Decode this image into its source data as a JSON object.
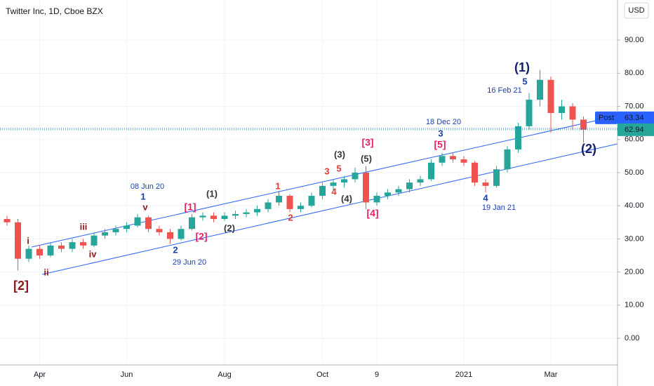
{
  "chart_data": {
    "type": "candlestick",
    "title": "Twitter Inc, 1D, Cboe BZX",
    "currency": "USD",
    "categories": [
      null,
      null,
      null,
      "Apr",
      null,
      null,
      null,
      null,
      null,
      null,
      null,
      "Jun",
      null,
      null,
      null,
      null,
      null,
      null,
      null,
      null,
      "Aug",
      null,
      null,
      null,
      null,
      null,
      null,
      null,
      null,
      "Oct",
      null,
      null,
      null,
      null,
      "9",
      null,
      null,
      null,
      null,
      null,
      null,
      null,
      "2021",
      null,
      null,
      null,
      null,
      null,
      null,
      null,
      "Mar",
      null,
      null,
      null
    ],
    "open": [
      36,
      35,
      24,
      27,
      25,
      28,
      27,
      29,
      28,
      31,
      32,
      33,
      34,
      36.5,
      33,
      32,
      30,
      33,
      36.5,
      37,
      36,
      37,
      37.5,
      38,
      39,
      41,
      43,
      39,
      40,
      43,
      46,
      47,
      48,
      50,
      41,
      43,
      44,
      45,
      47,
      48,
      53,
      55,
      54,
      53,
      47,
      46,
      51,
      57,
      64,
      72,
      78,
      68,
      70,
      66
    ],
    "high": [
      37,
      36,
      28,
      28,
      29,
      29,
      30,
      30,
      32,
      33,
      34,
      35,
      37.5,
      37,
      34,
      33,
      34,
      37.5,
      38,
      38,
      38,
      38.5,
      39,
      40,
      42,
      44.5,
      43.5,
      41,
      44,
      47,
      48,
      49,
      51.5,
      52,
      44,
      45,
      46,
      48,
      49,
      54,
      56,
      56,
      55,
      53.5,
      48,
      52,
      58,
      65,
      74,
      81,
      79,
      72,
      71,
      67
    ],
    "low": [
      34,
      20.5,
      23,
      24,
      24.5,
      26,
      26,
      27,
      27.5,
      30,
      31,
      32,
      33.5,
      32,
      31,
      28.5,
      29.5,
      32.5,
      35.5,
      35,
      35.5,
      36,
      36.5,
      37,
      38,
      40,
      38,
      38,
      39.5,
      42,
      44.5,
      45.5,
      47,
      39,
      40,
      42,
      43,
      44,
      46,
      47.5,
      52,
      53,
      52,
      46,
      44,
      45.5,
      50,
      56,
      63,
      70,
      62,
      66,
      63,
      59
    ],
    "close": [
      35,
      24,
      27,
      25,
      28,
      27,
      29,
      28,
      31,
      32,
      33,
      34,
      36.5,
      33,
      32,
      30,
      33,
      36.5,
      37,
      36,
      37,
      37.5,
      38,
      39,
      41,
      43,
      39,
      40,
      43,
      46,
      47,
      48,
      50,
      41,
      43,
      44,
      45,
      47,
      48,
      53,
      55,
      54,
      53,
      47,
      46,
      51,
      57,
      64,
      72,
      78,
      68,
      70,
      66,
      62.94
    ],
    "up_color": "#26a69a",
    "down_color": "#ef5350",
    "ylim": [
      -8.05,
      102.1
    ],
    "yticks": [
      {
        "value": 0,
        "label": "0.00"
      },
      {
        "value": 10,
        "label": "10.00"
      },
      {
        "value": 20,
        "label": "20.00"
      },
      {
        "value": 30,
        "label": "30.00"
      },
      {
        "value": 40,
        "label": "40.00"
      },
      {
        "value": 50,
        "label": "50.00"
      },
      {
        "value": 60,
        "label": "60.00"
      },
      {
        "value": 70,
        "label": "70.00"
      },
      {
        "value": 80,
        "label": "80.00"
      },
      {
        "value": 90,
        "label": "90.00"
      }
    ],
    "grid": true,
    "post_label": "Post",
    "post_price": 63.34,
    "post_color": "#2962ff",
    "last_price": 62.94,
    "annotations": [
      "[2]",
      "i",
      "ii",
      "iii",
      "iv",
      "v",
      "1",
      "08 Jun 20",
      "2",
      "29 Jun 20",
      "[1]",
      "[2]",
      "(1)",
      "(2)",
      "1",
      "2",
      "3",
      "5",
      "4",
      "(3)",
      "(4)",
      "(5)",
      "[3]",
      "[4]",
      "18 Dec 20",
      "3",
      "[5]",
      "4",
      "19 Jan 21",
      "(1)",
      "5",
      "16 Feb 21",
      "(2)"
    ]
  }
}
